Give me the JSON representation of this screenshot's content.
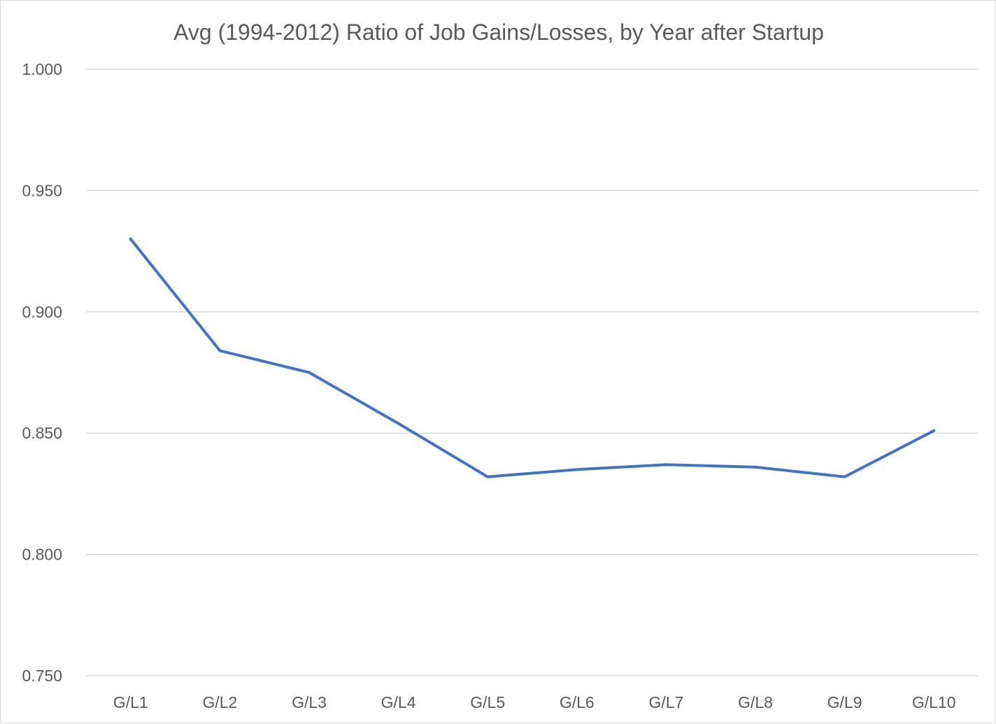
{
  "chart_data": {
    "type": "line",
    "title": "Avg (1994-2012) Ratio of Job Gains/Losses, by Year after Startup",
    "xlabel": "",
    "ylabel": "",
    "categories": [
      "G/L1",
      "G/L2",
      "G/L3",
      "G/L4",
      "G/L5",
      "G/L6",
      "G/L7",
      "G/L8",
      "G/L9",
      "G/L10"
    ],
    "series": [
      {
        "values": [
          0.93,
          0.884,
          0.875,
          0.854,
          0.832,
          0.835,
          0.837,
          0.836,
          0.832,
          0.851
        ],
        "color": "#4472c4"
      }
    ],
    "ylim": [
      0.75,
      1.0
    ],
    "yticks": [
      "0.750",
      "0.800",
      "0.850",
      "0.900",
      "0.950",
      "1.000"
    ],
    "ytick_values": [
      0.75,
      0.8,
      0.85,
      0.9,
      0.95,
      1.0
    ],
    "grid": true,
    "legend": "none"
  }
}
